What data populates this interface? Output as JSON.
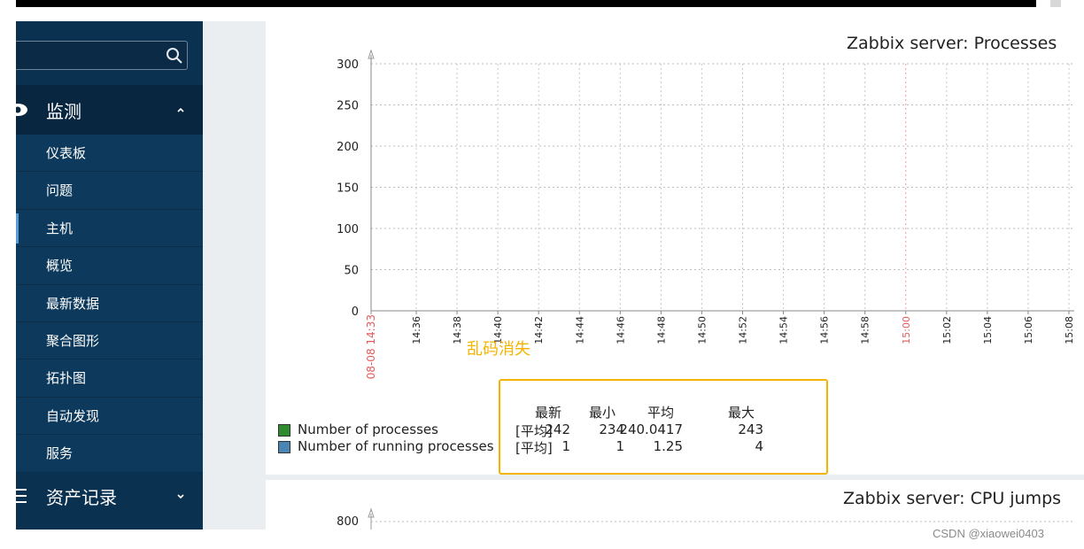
{
  "sidebar": {
    "monitor_label": "监测",
    "monitor_items": [
      {
        "label": "仪表板",
        "active": false
      },
      {
        "label": "问题",
        "active": false
      },
      {
        "label": "主机",
        "active": true
      },
      {
        "label": "概览",
        "active": false
      },
      {
        "label": "最新数据",
        "active": false
      },
      {
        "label": "聚合图形",
        "active": false
      },
      {
        "label": "拓扑图",
        "active": false
      },
      {
        "label": "自动发现",
        "active": false
      },
      {
        "label": "服务",
        "active": false
      }
    ],
    "assets_label": "资产记录"
  },
  "graph1": {
    "title": "Zabbix server: Processes",
    "date_label": "08-08 14:33",
    "note": "乱码消失",
    "legend": {
      "columns": [
        "最新",
        "最小",
        "平均",
        "最大"
      ],
      "rows": [
        {
          "name": "Number of processes",
          "func": "[平均]",
          "latest": "242",
          "min": "234",
          "avg": "240.0417",
          "max": "243",
          "color": "#2e8b2e"
        },
        {
          "name": "Number of running processes",
          "func": "[平均]",
          "latest": "1",
          "min": "1",
          "avg": "1.25",
          "max": "4",
          "color": "#4a86b4"
        }
      ]
    }
  },
  "graph2": {
    "title": "Zabbix server: CPU jumps",
    "y_top_label": "800"
  },
  "chart_data": {
    "type": "line",
    "title": "Zabbix server: Processes",
    "ylim": [
      0,
      300
    ],
    "yticks": [
      "300",
      "250",
      "200",
      "150",
      "100",
      "50",
      "0"
    ],
    "xticks": [
      {
        "label": "14:36",
        "red": false
      },
      {
        "label": "14:38",
        "red": false
      },
      {
        "label": "14:40",
        "red": false
      },
      {
        "label": "14:42",
        "red": false
      },
      {
        "label": "14:44",
        "red": false
      },
      {
        "label": "14:46",
        "red": false
      },
      {
        "label": "14:48",
        "red": false
      },
      {
        "label": "14:50",
        "red": false
      },
      {
        "label": "14:52",
        "red": false
      },
      {
        "label": "14:54",
        "red": false
      },
      {
        "label": "14:56",
        "red": false
      },
      {
        "label": "14:58",
        "red": false
      },
      {
        "label": "15:00",
        "red": true
      },
      {
        "label": "15:02",
        "red": false
      },
      {
        "label": "15:04",
        "red": false
      },
      {
        "label": "15:06",
        "red": false
      },
      {
        "label": "15:08",
        "red": false
      }
    ],
    "series": [
      {
        "name": "Number of processes",
        "values": []
      },
      {
        "name": "Number of running processes",
        "values": []
      }
    ]
  },
  "watermark": "CSDN @xiaowei0403",
  "colors": {
    "sidebar": "#0b3150",
    "highlight": "#f5b400",
    "red_tick": "#e45959"
  }
}
